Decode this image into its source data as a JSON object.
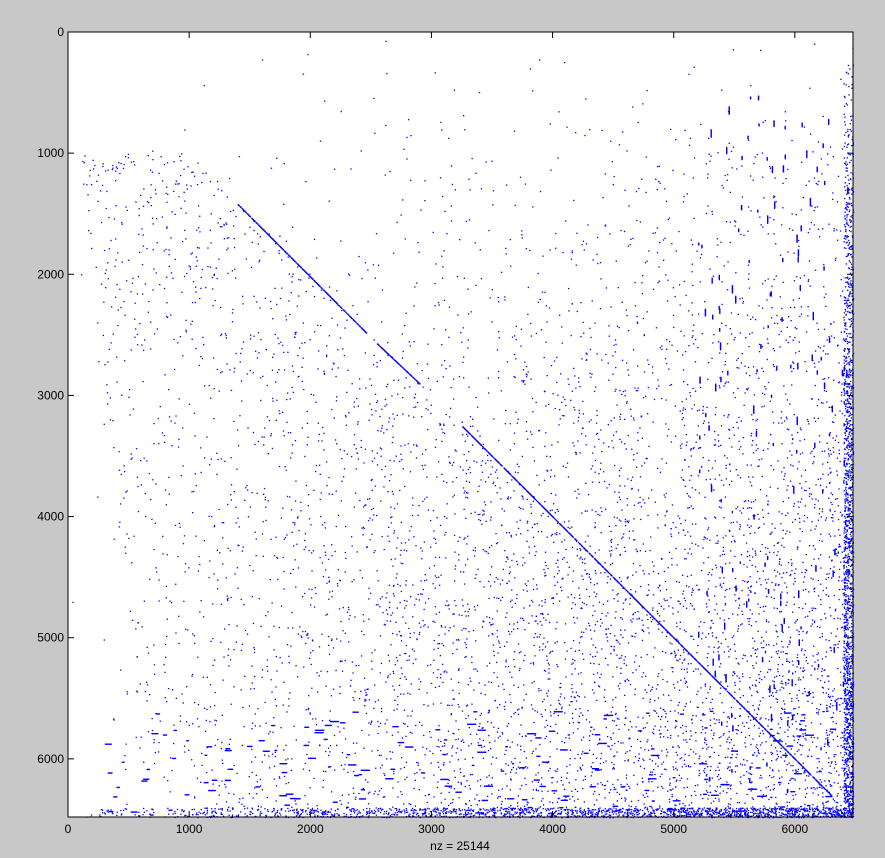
{
  "figure": {
    "background": "#c8c8c8",
    "axes_background": "#ffffff",
    "marker_color": "#0000ff"
  },
  "chart_data": {
    "type": "scatter",
    "title": "",
    "xlabel": "nz = 25144",
    "ylabel": "",
    "xlim": [
      0,
      6480
    ],
    "ylim": [
      6480,
      0
    ],
    "y_axis_reversed": true,
    "xticks": [
      0,
      1000,
      2000,
      3000,
      4000,
      5000,
      6000
    ],
    "xtick_labels": [
      "0",
      "1000",
      "2000",
      "3000",
      "4000",
      "5000",
      "6000"
    ],
    "yticks": [
      0,
      1000,
      2000,
      3000,
      4000,
      5000,
      6000
    ],
    "ytick_labels": [
      "0",
      "1000",
      "2000",
      "3000",
      "4000",
      "5000",
      "6000"
    ],
    "grid": false,
    "legend": "none",
    "nz": 25144,
    "structure": {
      "diagonal_segments": [
        [
          1400,
          1420,
          2460,
          2480
        ],
        [
          2550,
          2570,
          2900,
          2900
        ],
        [
          3250,
          3250,
          6300,
          6300
        ]
      ],
      "last_row_band": [
        6400,
        6480
      ],
      "last_col_band": [
        6400,
        6480
      ],
      "density_increases_toward": "bottom-right"
    }
  }
}
